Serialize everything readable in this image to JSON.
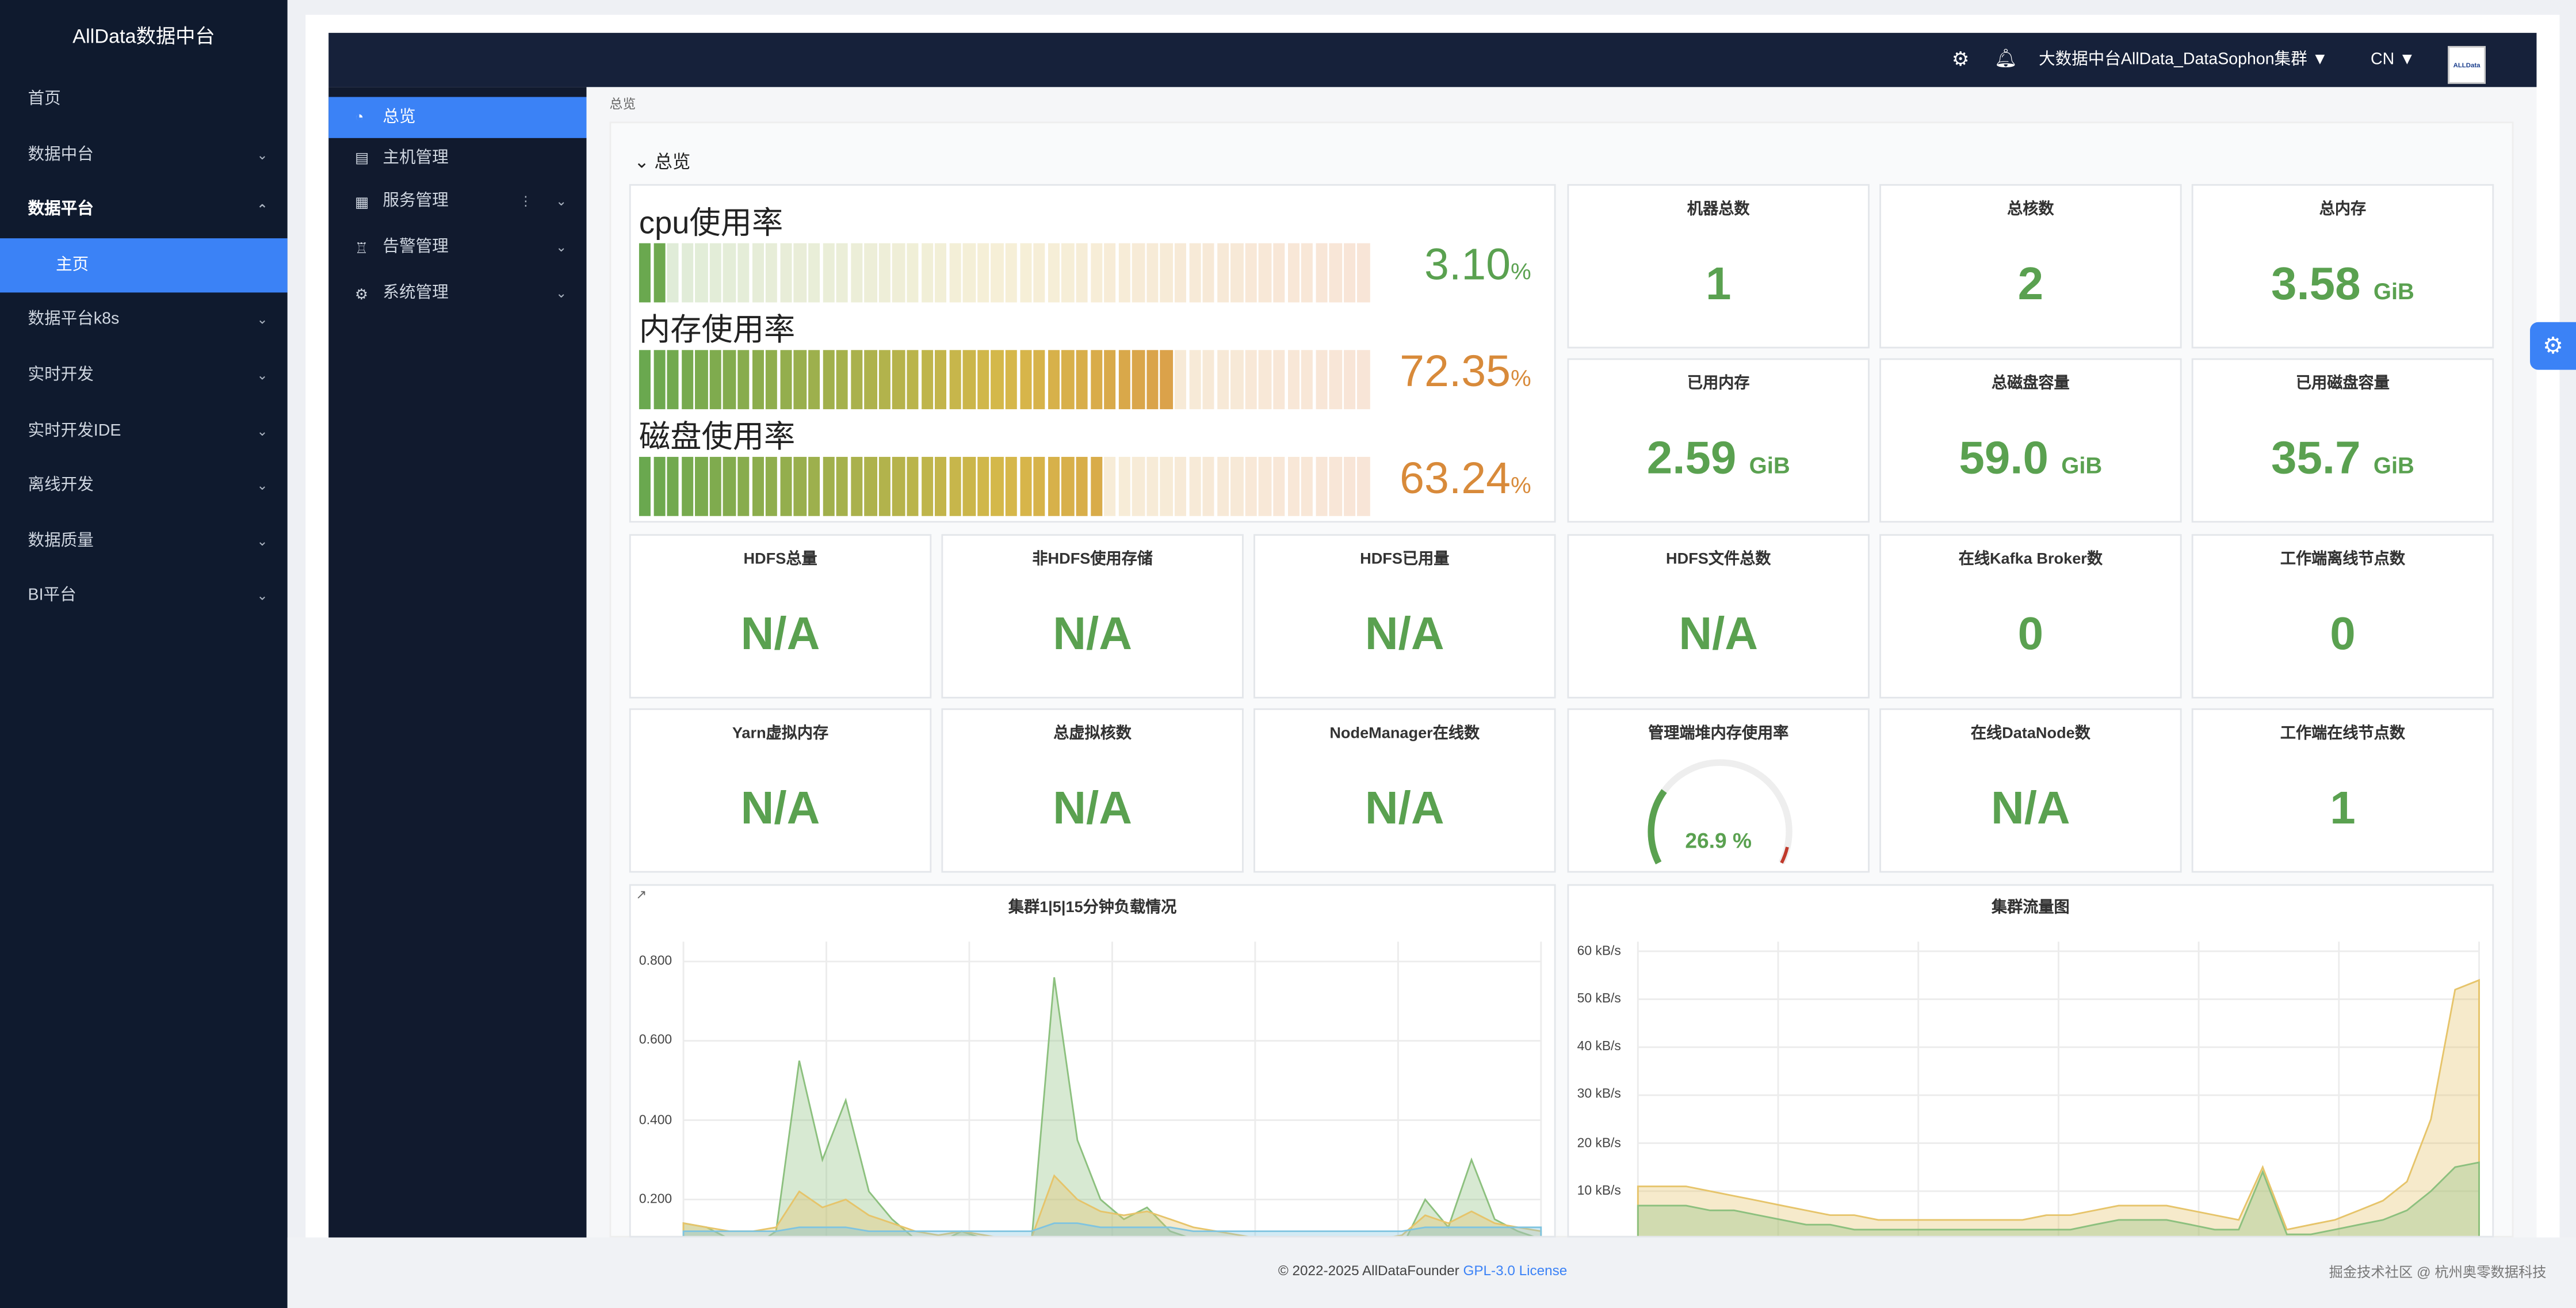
{
  "app_title": "AllData数据中台",
  "sidebar": {
    "items": [
      {
        "label": "首页",
        "chevron": ""
      },
      {
        "label": "数据中台",
        "chevron": "⌄"
      },
      {
        "label": "数据平台",
        "chevron": "⌃"
      },
      {
        "label": "主页",
        "chevron": ""
      },
      {
        "label": "数据平台k8s",
        "chevron": "⌄"
      },
      {
        "label": "实时开发",
        "chevron": "⌄"
      },
      {
        "label": "实时开发IDE",
        "chevron": "⌄"
      },
      {
        "label": "离线开发",
        "chevron": "⌄"
      },
      {
        "label": "数据质量",
        "chevron": "⌄"
      },
      {
        "label": "BI平台",
        "chevron": "⌄"
      }
    ]
  },
  "topbar": {
    "cluster": "大数据中台AllData_DataSophon集群",
    "lang": "CN",
    "logo_text": "ALLData"
  },
  "submenu": {
    "items": [
      {
        "label": "总览",
        "icon": "chart-pie-icon"
      },
      {
        "label": "主机管理",
        "icon": "server-icon"
      },
      {
        "label": "服务管理",
        "icon": "grid-icon"
      },
      {
        "label": "告警管理",
        "icon": "bell-icon"
      },
      {
        "label": "系统管理",
        "icon": "gear-icon"
      }
    ]
  },
  "breadcrumb": "总览",
  "section_title": "总览",
  "usage": [
    {
      "label": "cpu使用率",
      "value": "3.10",
      "unit": "%",
      "level": 0.031,
      "color": "#5aa150"
    },
    {
      "label": "内存使用率",
      "value": "72.35",
      "unit": "%",
      "level": 0.7235,
      "color": "#d88a3a"
    },
    {
      "label": "磁盘使用率",
      "value": "63.24",
      "unit": "%",
      "level": 0.6324,
      "color": "#d88a3a"
    }
  ],
  "stats_top": [
    {
      "title": "机器总数",
      "value": "1",
      "unit": ""
    },
    {
      "title": "总核数",
      "value": "2",
      "unit": ""
    },
    {
      "title": "总内存",
      "value": "3.58",
      "unit": "GiB"
    },
    {
      "title": "已用内存",
      "value": "2.59",
      "unit": "GiB"
    },
    {
      "title": "总磁盘容量",
      "value": "59.0",
      "unit": "GiB"
    },
    {
      "title": "已用磁盘容量",
      "value": "35.7",
      "unit": "GiB"
    }
  ],
  "stats_row3": [
    {
      "title": "HDFS总量",
      "value": "N/A"
    },
    {
      "title": "非HDFS使用存储",
      "value": "N/A"
    },
    {
      "title": "HDFS已用量",
      "value": "N/A"
    },
    {
      "title": "HDFS文件总数",
      "value": "N/A"
    },
    {
      "title": "在线Kafka Broker数",
      "value": "0"
    },
    {
      "title": "工作端离线节点数",
      "value": "0"
    }
  ],
  "stats_row4": [
    {
      "title": "Yarn虚拟内存",
      "value": "N/A"
    },
    {
      "title": "总虚拟核数",
      "value": "N/A"
    },
    {
      "title": "NodeManager在线数",
      "value": "N/A"
    },
    {
      "title": "管理端堆内存使用率",
      "value": "26.9 %",
      "gauge": 0.269
    },
    {
      "title": "在线DataNode数",
      "value": "N/A"
    },
    {
      "title": "工作端在线节点数",
      "value": "1"
    }
  ],
  "chart_data": [
    {
      "type": "area",
      "title": "集群1|5|15分钟负载情况",
      "yticks": [
        "0.800",
        "0.600",
        "0.400",
        "0.200"
      ],
      "ylim": [
        0.1,
        0.85
      ],
      "series": [
        {
          "color": "#8cc07e",
          "values": [
            0.14,
            0.13,
            0.1,
            0.08,
            0.12,
            0.55,
            0.3,
            0.45,
            0.22,
            0.15,
            0.1,
            0.09,
            0.12,
            0.1,
            0.08,
            0.08,
            0.76,
            0.35,
            0.2,
            0.15,
            0.18,
            0.12,
            0.1,
            0.08,
            0.07,
            0.07,
            0.07,
            0.07,
            0.07,
            0.07,
            0.07,
            0.08,
            0.2,
            0.13,
            0.3,
            0.15,
            0.12,
            0.1
          ]
        },
        {
          "color": "#e6c46a",
          "values": [
            0.14,
            0.13,
            0.12,
            0.12,
            0.13,
            0.22,
            0.18,
            0.2,
            0.16,
            0.14,
            0.12,
            0.11,
            0.12,
            0.11,
            0.1,
            0.1,
            0.26,
            0.2,
            0.17,
            0.16,
            0.17,
            0.15,
            0.13,
            0.12,
            0.11,
            0.1,
            0.1,
            0.1,
            0.1,
            0.1,
            0.1,
            0.11,
            0.16,
            0.14,
            0.17,
            0.14,
            0.13,
            0.12
          ]
        },
        {
          "color": "#7fc4e0",
          "values": [
            0.12,
            0.12,
            0.12,
            0.12,
            0.12,
            0.13,
            0.13,
            0.13,
            0.12,
            0.12,
            0.12,
            0.12,
            0.12,
            0.12,
            0.12,
            0.12,
            0.14,
            0.14,
            0.13,
            0.13,
            0.13,
            0.13,
            0.12,
            0.12,
            0.12,
            0.12,
            0.12,
            0.12,
            0.12,
            0.12,
            0.12,
            0.12,
            0.13,
            0.13,
            0.13,
            0.13,
            0.13,
            0.13
          ]
        }
      ]
    },
    {
      "type": "area",
      "title": "集群流量图",
      "yticks": [
        "60 kB/s",
        "50 kB/s",
        "40 kB/s",
        "30 kB/s",
        "20 kB/s",
        "10 kB/s"
      ],
      "ylim": [
        0,
        62
      ],
      "series": [
        {
          "color": "#e6c46a",
          "values": [
            11,
            11,
            11,
            10,
            9,
            8,
            7,
            6,
            5,
            5,
            4,
            4,
            4,
            4,
            4,
            4,
            4,
            5,
            5,
            6,
            7,
            7,
            7,
            6,
            5,
            4,
            15,
            2,
            3,
            4,
            6,
            8,
            12,
            25,
            52,
            54
          ]
        },
        {
          "color": "#8cc07e",
          "values": [
            7,
            7,
            7,
            6,
            6,
            5,
            4,
            3,
            3,
            2,
            2,
            2,
            2,
            2,
            2,
            2,
            2,
            2,
            2,
            3,
            4,
            4,
            4,
            3,
            2,
            2,
            14,
            1,
            1,
            2,
            3,
            4,
            6,
            10,
            15,
            16
          ]
        }
      ]
    }
  ],
  "footer": {
    "copyright": "© 2022-2025 AllDataFounder",
    "license": "GPL-3.0 License",
    "right": "掘金技术社区 @ 杭州奥零数据科技"
  }
}
